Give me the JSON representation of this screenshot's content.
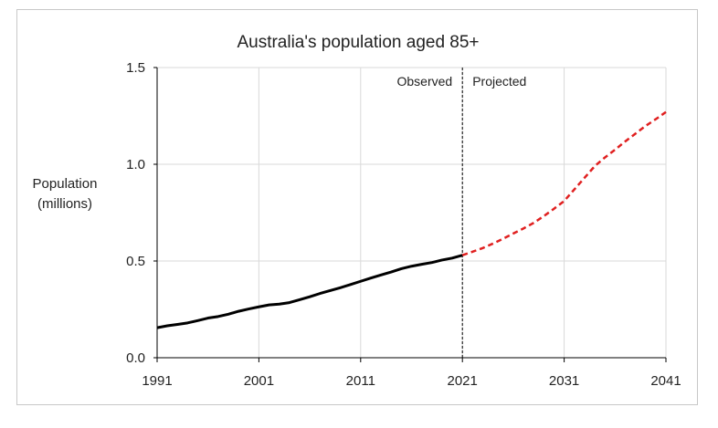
{
  "chart_data": {
    "type": "line",
    "title": "Australia's population aged 85+",
    "xlabel": "",
    "ylabel": [
      "Population",
      "(millions)"
    ],
    "xlim": [
      1991,
      2041
    ],
    "ylim": [
      0,
      1.5
    ],
    "x_ticks": [
      "1991",
      "2001",
      "2011",
      "2021",
      "2031",
      "2041"
    ],
    "y_ticks": [
      "0.0",
      "0.5",
      "1.0",
      "1.5"
    ],
    "grid": "vertical and horizontal",
    "divider_x": 2021,
    "annotations": {
      "left": "Observed",
      "right": "Projected"
    },
    "series": [
      {
        "style": "solid",
        "color": "#000000",
        "x": [
          1991,
          1992,
          1993,
          1994,
          1995,
          1996,
          1997,
          1998,
          1999,
          2000,
          2001,
          2002,
          2003,
          2004,
          2005,
          2006,
          2007,
          2008,
          2009,
          2010,
          2011,
          2012,
          2013,
          2014,
          2015,
          2016,
          2017,
          2018,
          2019,
          2020,
          2021
        ],
        "y": [
          0.155,
          0.165,
          0.172,
          0.18,
          0.192,
          0.205,
          0.213,
          0.225,
          0.24,
          0.252,
          0.263,
          0.273,
          0.277,
          0.285,
          0.3,
          0.315,
          0.332,
          0.347,
          0.362,
          0.378,
          0.395,
          0.412,
          0.428,
          0.443,
          0.46,
          0.473,
          0.483,
          0.492,
          0.505,
          0.515,
          0.53
        ]
      },
      {
        "style": "dashed",
        "color": "#e02020",
        "x": [
          2021,
          2022,
          2023,
          2024,
          2025,
          2026,
          2027,
          2028,
          2029,
          2030,
          2031,
          2032,
          2033,
          2034,
          2035,
          2036,
          2037,
          2038,
          2039,
          2040,
          2041
        ],
        "y": [
          0.53,
          0.548,
          0.567,
          0.59,
          0.615,
          0.642,
          0.668,
          0.697,
          0.732,
          0.77,
          0.81,
          0.87,
          0.93,
          0.99,
          1.035,
          1.075,
          1.118,
          1.158,
          1.198,
          1.233,
          1.27
        ]
      }
    ]
  }
}
